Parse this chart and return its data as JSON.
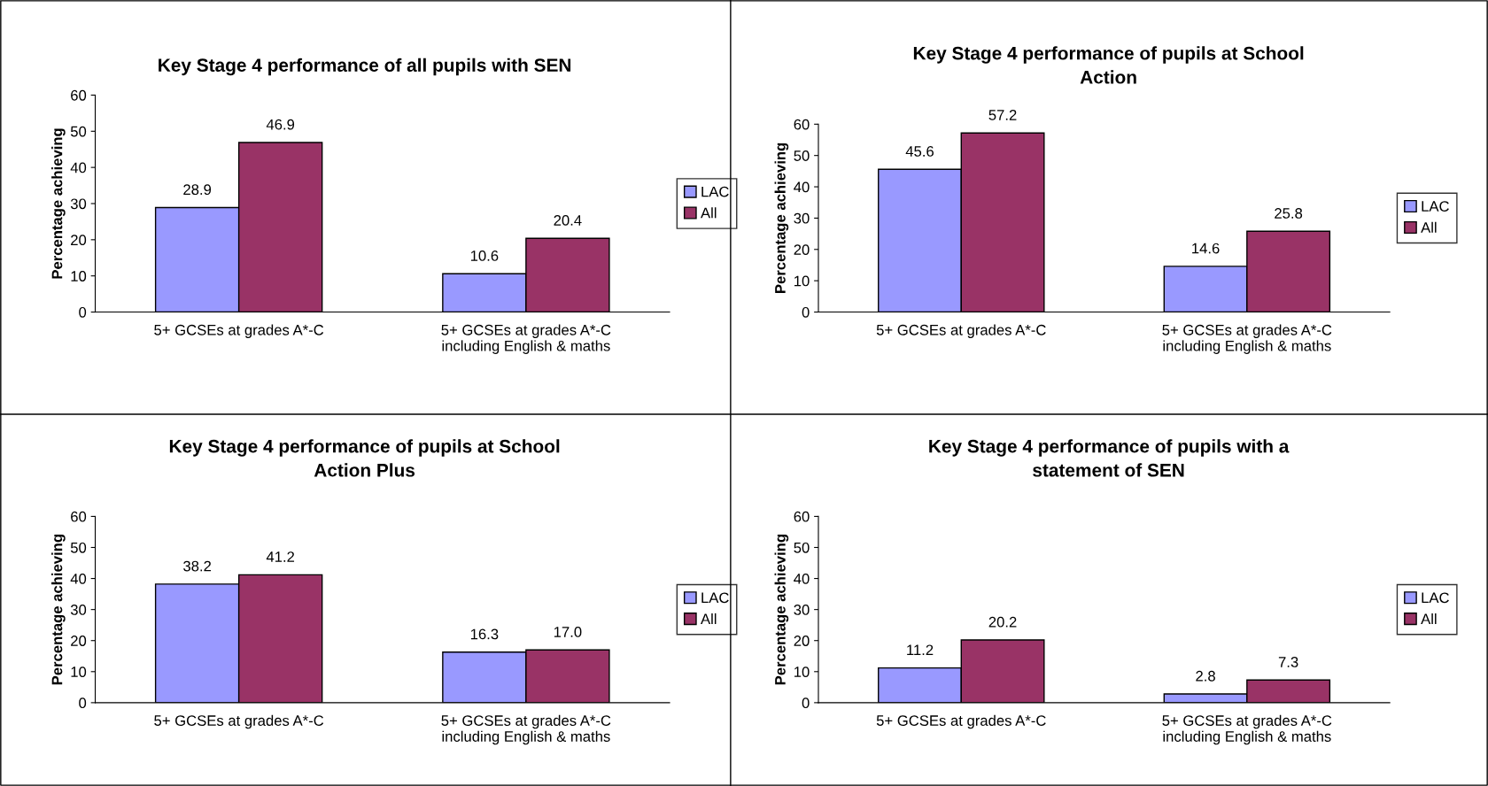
{
  "chart_data": [
    {
      "type": "bar",
      "title": "Key Stage 4 performance of all pupils with SEN",
      "ylabel": "Percentage achieving",
      "categories": [
        "5+ GCSEs at grades A*-C",
        "5+ GCSEs at grades A*-C\nincluding English & maths"
      ],
      "series": [
        {
          "name": "LAC",
          "color": "#9999ff",
          "values": [
            28.9,
            10.6
          ],
          "value_labels": [
            "28.9",
            "10.6"
          ]
        },
        {
          "name": "All",
          "color": "#993366",
          "values": [
            46.9,
            20.4
          ],
          "value_labels": [
            "46.9",
            "20.4"
          ]
        }
      ],
      "ylim": [
        0,
        60
      ],
      "yticks": [
        0,
        10,
        20,
        30,
        40,
        50,
        60
      ],
      "grid": false,
      "legend": "right"
    },
    {
      "type": "bar",
      "title": "Key Stage 4 performance of pupils at School\nAction",
      "ylabel": "Percentage achieving",
      "categories": [
        "5+ GCSEs at grades A*-C",
        "5+ GCSEs at grades A*-C\nincluding English & maths"
      ],
      "series": [
        {
          "name": "LAC",
          "color": "#9999ff",
          "values": [
            45.6,
            14.6
          ],
          "value_labels": [
            "45.6",
            "14.6"
          ]
        },
        {
          "name": "All",
          "color": "#993366",
          "values": [
            57.2,
            25.8
          ],
          "value_labels": [
            "57.2",
            "25.8"
          ]
        }
      ],
      "ylim": [
        0,
        60
      ],
      "yticks": [
        0,
        10,
        20,
        30,
        40,
        50,
        60
      ],
      "grid": false,
      "legend": "right"
    },
    {
      "type": "bar",
      "title": "Key Stage 4 performance of pupils at School\nAction Plus",
      "ylabel": "Percentage achieving",
      "categories": [
        "5+ GCSEs at grades A*-C",
        "5+ GCSEs at grades A*-C\nincluding English & maths"
      ],
      "series": [
        {
          "name": "LAC",
          "color": "#9999ff",
          "values": [
            38.2,
            16.3
          ],
          "value_labels": [
            "38.2",
            "16.3"
          ]
        },
        {
          "name": "All",
          "color": "#993366",
          "values": [
            41.2,
            17.0
          ],
          "value_labels": [
            "41.2",
            "17.0"
          ]
        }
      ],
      "ylim": [
        0,
        60
      ],
      "yticks": [
        0,
        10,
        20,
        30,
        40,
        50,
        60
      ],
      "grid": false,
      "legend": "right"
    },
    {
      "type": "bar",
      "title": "Key Stage 4 performance of pupils with a\nstatement of SEN",
      "ylabel": "Percentage achieving",
      "categories": [
        "5+ GCSEs at grades A*-C",
        "5+ GCSEs at grades A*-C\nincluding English & maths"
      ],
      "series": [
        {
          "name": "LAC",
          "color": "#9999ff",
          "values": [
            11.2,
            2.8
          ],
          "value_labels": [
            "11.2",
            "2.8"
          ]
        },
        {
          "name": "All",
          "color": "#993366",
          "values": [
            20.2,
            7.3
          ],
          "value_labels": [
            "20.2",
            "7.3"
          ]
        }
      ],
      "ylim": [
        0,
        60
      ],
      "yticks": [
        0,
        10,
        20,
        30,
        40,
        50,
        60
      ],
      "grid": false,
      "legend": "right"
    }
  ]
}
